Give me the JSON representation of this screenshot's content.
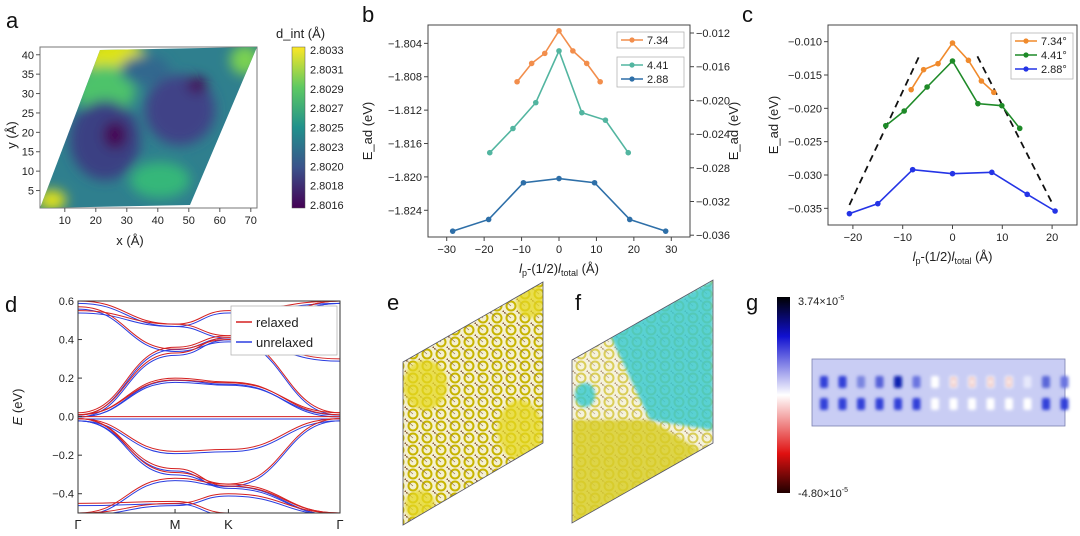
{
  "panels": {
    "a": "a",
    "b": "b",
    "c": "c",
    "d": "d",
    "e": "e",
    "f": "f",
    "g": "g"
  },
  "chart_data": [
    {
      "id": "a",
      "type": "heatmap",
      "xlabel": "x (Å)",
      "ylabel": "y (Å)",
      "colorbar_label": "d_int (Å)",
      "colorbar_label_main": "d",
      "colorbar_label_sub": "int",
      "colorbar_unit": "(Å)",
      "xticks": [
        10,
        20,
        30,
        40,
        50,
        60,
        70
      ],
      "yticks": [
        5,
        10,
        15,
        20,
        25,
        30,
        35,
        40
      ],
      "xlim": [
        2,
        72
      ],
      "ylim": [
        0.5,
        42
      ],
      "colorbar_ticks": [
        "2.8033",
        "2.8031",
        "2.8029",
        "2.8027",
        "2.8025",
        "2.8023",
        "2.8020",
        "2.8018",
        "2.8016"
      ],
      "colormap": "viridis"
    },
    {
      "id": "b",
      "type": "line",
      "xlabel": "l_p-(1/2)l_total (Å)",
      "ylabel": "E_ad (eV)",
      "right_ylabel": "E_ad (eV)",
      "xlim": [
        -35,
        35
      ],
      "ylim": [
        -1.8272,
        -1.8018
      ],
      "xticks": [
        -30,
        -20,
        -10,
        0,
        10,
        20,
        30
      ],
      "yticks": [
        -1.804,
        -1.808,
        -1.812,
        -1.816,
        -1.82,
        -1.824
      ],
      "right_yticks": [
        -0.012,
        -0.016,
        -0.02,
        -0.024,
        -0.028,
        -0.032,
        -0.036
      ],
      "series": [
        {
          "name": "7.34",
          "color": "#f28e4c",
          "x": [
            -11.2,
            -7.3,
            -3.8,
            0,
            3.7,
            7.4,
            11.0
          ],
          "y": [
            -1.8086,
            -1.8064,
            -1.8052,
            -1.8025,
            -1.8049,
            -1.8064,
            -1.8086
          ]
        },
        {
          "name": "4.41",
          "color": "#52b5a0",
          "x": [
            -18.5,
            -12.3,
            -6.2,
            0,
            6.1,
            12.4,
            18.5
          ],
          "y": [
            -1.8171,
            -1.8142,
            -1.8111,
            -1.8049,
            -1.8123,
            -1.8132,
            -1.8171
          ]
        },
        {
          "name": "2.88",
          "color": "#2e6fa8",
          "x": [
            -28.4,
            -18.8,
            -9.5,
            0,
            9.5,
            18.9,
            28.5
          ],
          "y": [
            -1.8265,
            -1.8251,
            -1.8207,
            -1.8202,
            -1.8207,
            -1.8251,
            -1.8265
          ]
        }
      ]
    },
    {
      "id": "c",
      "type": "line",
      "xlabel": "l_p-(1/2)l_total (Å)",
      "ylabel": "E_ad (eV)",
      "xlim": [
        -25,
        25
      ],
      "ylim": [
        -0.0375,
        -0.0075
      ],
      "xticks": [
        -20,
        -10,
        0,
        10,
        20
      ],
      "yticks": [
        -0.01,
        -0.015,
        -0.02,
        -0.025,
        -0.03,
        -0.035
      ],
      "series": [
        {
          "name": "7.34°",
          "color": "#f08a2c",
          "x": [
            -8.3,
            -5.8,
            -2.9,
            0,
            3.2,
            5.8,
            8.3
          ],
          "y": [
            -0.0172,
            -0.0142,
            -0.0133,
            -0.0102,
            -0.0128,
            -0.0159,
            -0.0176
          ]
        },
        {
          "name": "4.41°",
          "color": "#1e8a28",
          "x": [
            -13.4,
            -9.7,
            -5.1,
            0,
            5.1,
            9.9,
            13.5
          ],
          "y": [
            -0.0226,
            -0.0204,
            -0.0168,
            -0.0129,
            -0.0193,
            -0.0196,
            -0.023
          ]
        },
        {
          "name": "2.88°",
          "color": "#2434e6",
          "x": [
            -20.7,
            -15,
            -8,
            0,
            7.9,
            15,
            20.6
          ],
          "y": [
            -0.0358,
            -0.0343,
            -0.0292,
            -0.0298,
            -0.0296,
            -0.0329,
            -0.0354
          ]
        }
      ],
      "guides": [
        {
          "x": [
            -20.7,
            -6.7
          ],
          "y": [
            -0.0345,
            -0.0122
          ],
          "style": "dashed",
          "color": "#111111"
        },
        {
          "x": [
            5.0,
            20.2
          ],
          "y": [
            -0.0122,
            -0.0345
          ],
          "style": "dashed",
          "color": "#111111"
        }
      ]
    },
    {
      "id": "d",
      "type": "line",
      "ylabel": "E (eV)",
      "ylim": [
        -0.5,
        0.6
      ],
      "yticks": [
        "0.6",
        "0.4",
        "0.2",
        "0.0",
        "-0.2",
        "-0.4"
      ],
      "kpoints": [
        {
          "label": "Γ",
          "k": 0
        },
        {
          "label": "M",
          "k": 1
        },
        {
          "label": "K",
          "k": 1.55
        },
        {
          "label": "Γ",
          "k": 2.7
        }
      ],
      "legend": [
        {
          "name": "relaxed",
          "color": "#d42020"
        },
        {
          "name": "unrelaxed",
          "color": "#2a3de0"
        }
      ],
      "bands": [
        [
          0,
          0,
          0,
          0
        ],
        [
          0.01,
          0.2,
          0.18,
          0.01
        ],
        [
          0.01,
          0.19,
          0.175,
          0.02
        ],
        [
          0.01,
          0.33,
          0.41,
          0.02
        ],
        [
          0.02,
          0.36,
          0.42,
          0.6
        ],
        [
          0.55,
          0.48,
          0.42,
          0.6
        ],
        [
          0.57,
          0.35,
          0.4,
          0.3
        ],
        [
          0.6,
          0.48,
          0.55,
          0.6
        ],
        [
          -0.01,
          -0.18,
          -0.17,
          -0.01
        ],
        [
          -0.01,
          -0.29,
          -0.35,
          -0.01
        ],
        [
          -0.01,
          -0.27,
          -0.36,
          -0.5
        ],
        [
          -0.5,
          -0.32,
          -0.35,
          -0.5
        ],
        [
          -0.5,
          -0.45,
          -0.4,
          -0.5
        ],
        [
          -0.45,
          -0.44,
          -0.5,
          -0.5
        ]
      ],
      "unrelaxed_shift": -0.012
    },
    {
      "id": "g",
      "type": "heatmap",
      "colorbar_max": "3.74×10",
      "colorbar_max_exp": "-5",
      "colorbar_min": "-4.80×10",
      "colorbar_min_exp": "-5",
      "colormap": [
        "#000000",
        "#1010d0",
        "#ffffff",
        "#e01010",
        "#200000"
      ]
    }
  ]
}
